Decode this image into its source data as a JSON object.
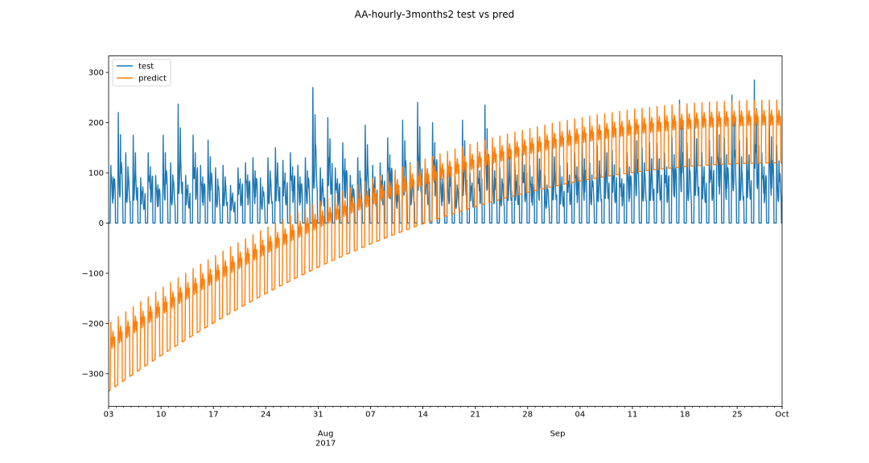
{
  "chart_data": {
    "type": "line",
    "title": "AA-hourly-3months2 test vs pred",
    "xlabel": "",
    "ylabel": "",
    "x_range": [
      "2017-07-03",
      "2017-10-01"
    ],
    "ylim": [
      -365,
      333
    ],
    "grid": false,
    "legend": {
      "position": "top-left",
      "entries": [
        "test",
        "predict"
      ]
    },
    "y_ticks": [
      -300,
      -200,
      -100,
      0,
      100,
      200,
      300
    ],
    "y_tick_labels": [
      "−300",
      "−200",
      "−100",
      "0",
      "100",
      "200",
      "300"
    ],
    "x_major_ticks": [
      {
        "date": "2017-07-03",
        "label": "03"
      },
      {
        "date": "2017-07-10",
        "label": "10"
      },
      {
        "date": "2017-07-17",
        "label": "17"
      },
      {
        "date": "2017-07-24",
        "label": "24"
      },
      {
        "date": "2017-07-31",
        "label": "31"
      },
      {
        "date": "2017-08-07",
        "label": "07"
      },
      {
        "date": "2017-08-14",
        "label": "14"
      },
      {
        "date": "2017-08-21",
        "label": "21"
      },
      {
        "date": "2017-08-28",
        "label": "28"
      },
      {
        "date": "2017-09-04",
        "label": "04"
      },
      {
        "date": "2017-09-11",
        "label": "11"
      },
      {
        "date": "2017-09-18",
        "label": "18"
      },
      {
        "date": "2017-09-25",
        "label": "25"
      },
      {
        "date": "2017-10-01",
        "label": "Oct"
      }
    ],
    "x_secondary_labels": [
      {
        "date": "2017-08-01",
        "label": "Aug",
        "year": "2017"
      },
      {
        "date": "2017-09-01",
        "label": "Sep",
        "year": ""
      }
    ],
    "series": [
      {
        "name": "test",
        "color": "#1f77b4",
        "pattern": "hourly daily cycle: 0 outside business hours, daytime activity",
        "daily_peak": [
          115,
          220,
          140,
          175,
          90,
          140,
          95,
          175,
          120,
          237,
          95,
          175,
          115,
          165,
          110,
          115,
          75,
          110,
          120,
          130,
          90,
          130,
          150,
          125,
          140,
          115,
          130,
          270,
          110,
          210,
          110,
          160,
          95,
          130,
          195,
          115,
          120,
          170,
          95,
          205,
          120,
          240,
          120,
          200,
          110,
          130,
          95,
          205,
          100,
          130,
          235,
          130,
          110,
          165,
          120,
          145,
          115,
          160,
          95,
          165,
          115,
          120,
          140,
          160,
          120,
          155,
          175,
          145,
          110,
          140,
          205,
          150,
          160,
          160,
          140,
          170,
          245,
          160,
          210,
          140,
          165,
          220,
          170,
          255,
          165,
          170,
          285,
          140,
          215,
          155,
          170,
          255,
          165,
          190,
          180,
          200,
          160,
          205,
          170,
          215,
          165,
          225,
          200,
          255,
          160,
          215,
          180,
          230,
          195,
          300,
          180,
          210,
          185,
          235,
          170,
          220,
          200,
          230,
          175,
          240,
          180,
          220,
          190,
          240,
          205,
          290,
          195,
          285,
          225,
          270,
          175,
          240,
          200,
          245,
          165,
          140
        ],
        "daily_mid": [
          85,
          115,
          90,
          100,
          60,
          90,
          65,
          100,
          80,
          130,
          65,
          105,
          75,
          95,
          70,
          75,
          50,
          75,
          80,
          85,
          60,
          85,
          95,
          80,
          90,
          75,
          85,
          150,
          75,
          125,
          75,
          100,
          65,
          85,
          115,
          75,
          80,
          105,
          65,
          120,
          80,
          135,
          80,
          120,
          75,
          85,
          65,
          120,
          70,
          85,
          130,
          85,
          75,
          100,
          80,
          95,
          75,
          100,
          65,
          100,
          75,
          80,
          90,
          100,
          80,
          95,
          105,
          90,
          75,
          90,
          120,
          95,
          100,
          100,
          90,
          105,
          135,
          100,
          120,
          90,
          100,
          125,
          105,
          140,
          100,
          105,
          150,
          90,
          120,
          95,
          105,
          140,
          100,
          110,
          105,
          115,
          100,
          120,
          105,
          120,
          100,
          125,
          115,
          140,
          100,
          120,
          105,
          130,
          110,
          160,
          105,
          120,
          110,
          130,
          105,
          125,
          115,
          130,
          105,
          135,
          105,
          125,
          110,
          135,
          115,
          155,
          110,
          150,
          125,
          150,
          105,
          135,
          115,
          140,
          100,
          85
        ]
      },
      {
        "name": "predict",
        "color": "#ff7f0e",
        "start_low": -335,
        "start_high": -200,
        "end_low": 120,
        "end_high": 245,
        "trend_shape": "concave rising trend with daily cycle; low baseline overnight, peaks during day"
      }
    ]
  }
}
